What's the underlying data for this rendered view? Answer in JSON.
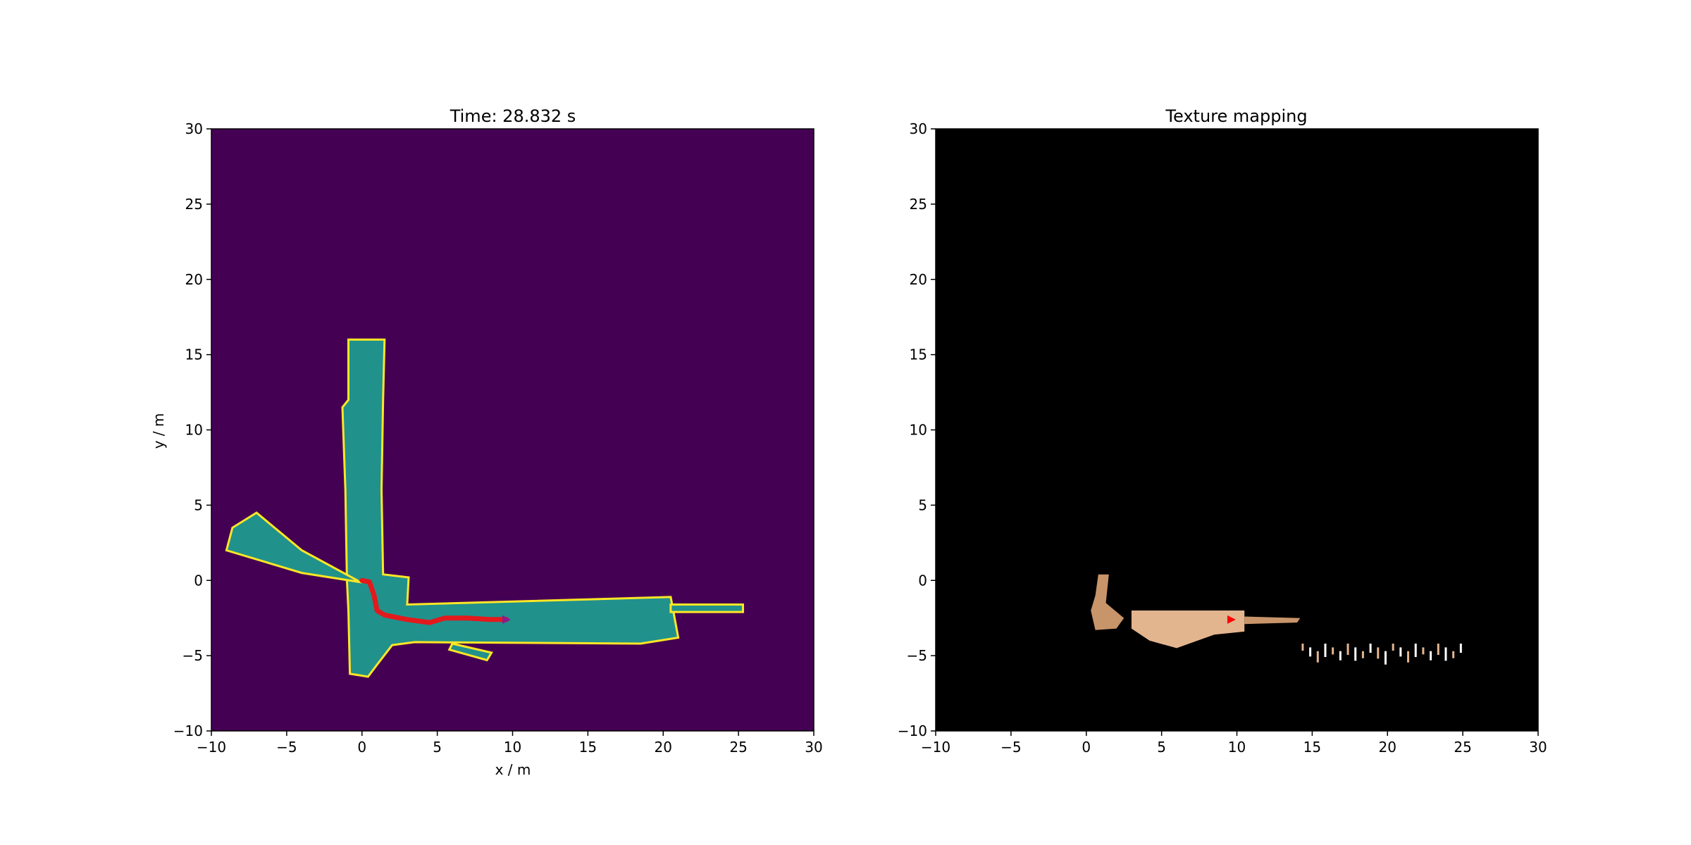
{
  "chart_data": [
    {
      "type": "heatmap",
      "title": "Time: 28.832 s",
      "xlabel": "x / m",
      "ylabel": "y / m",
      "xlim": [
        -10,
        30
      ],
      "ylim": [
        -10,
        30
      ],
      "xticks": [
        "−10",
        "−5",
        "0",
        "5",
        "10",
        "15",
        "20",
        "25",
        "30"
      ],
      "yticks": [
        "−10",
        "−5",
        "0",
        "5",
        "10",
        "15",
        "20",
        "25",
        "30"
      ],
      "colors": {
        "unknown": "#440154",
        "free": "#21918c",
        "occupied": "#fde725",
        "trajectory": "#e3191c"
      },
      "free_regions": [
        [
          [
            -0.9,
            16.0
          ],
          [
            1.5,
            16.0
          ],
          [
            1.4,
            12.0
          ],
          [
            1.3,
            6.0
          ],
          [
            1.4,
            0.4
          ],
          [
            3.1,
            0.2
          ],
          [
            3.0,
            -1.6
          ],
          [
            20.5,
            -1.1
          ],
          [
            21.0,
            -3.8
          ],
          [
            18.5,
            -4.2
          ],
          [
            3.5,
            -4.1
          ],
          [
            2.0,
            -4.3
          ],
          [
            1.0,
            -5.6
          ],
          [
            0.4,
            -6.4
          ],
          [
            -0.8,
            -6.2
          ],
          [
            -0.9,
            -2.0
          ],
          [
            -1.0,
            0.0
          ],
          [
            -1.1,
            6.0
          ],
          [
            -1.3,
            11.5
          ],
          [
            -0.9,
            12.0
          ]
        ],
        [
          [
            -0.3,
            0.0
          ],
          [
            -4.0,
            2.0
          ],
          [
            -7.0,
            4.5
          ],
          [
            -8.6,
            3.5
          ],
          [
            -9.0,
            2.0
          ],
          [
            -4.0,
            0.5
          ],
          [
            -0.2,
            -0.1
          ]
        ],
        [
          [
            6.0,
            -4.2
          ],
          [
            8.6,
            -4.8
          ],
          [
            8.3,
            -5.3
          ],
          [
            5.8,
            -4.6
          ]
        ],
        [
          [
            20.5,
            -1.6
          ],
          [
            25.3,
            -1.6
          ],
          [
            25.3,
            -2.1
          ],
          [
            20.5,
            -2.1
          ]
        ]
      ],
      "trajectory": {
        "x": [
          0.0,
          0.5,
          0.8,
          1.0,
          1.5,
          3.0,
          4.5,
          5.5,
          7.0,
          8.5,
          9.6
        ],
        "y": [
          0.0,
          -0.1,
          -1.0,
          -2.0,
          -2.3,
          -2.6,
          -2.8,
          -2.5,
          -2.5,
          -2.6,
          -2.6
        ]
      }
    },
    {
      "type": "heatmap",
      "title": "Texture mapping",
      "xlim": [
        -10,
        30
      ],
      "ylim": [
        -10,
        30
      ],
      "xticks": [
        "−10",
        "−5",
        "0",
        "5",
        "10",
        "15",
        "20",
        "25",
        "30"
      ],
      "yticks": [
        "−10",
        "−5",
        "0",
        "5",
        "10",
        "15",
        "20",
        "25",
        "30"
      ],
      "colors": {
        "background": "#000000",
        "texture": "#c8946a",
        "texture_light": "#e3b58f",
        "white": "#ffffff",
        "marker": "#ff0000"
      },
      "texture_regions": [
        [
          [
            0.8,
            0.4
          ],
          [
            1.5,
            0.4
          ],
          [
            1.3,
            -1.5
          ],
          [
            2.5,
            -2.5
          ],
          [
            2.0,
            -3.2
          ],
          [
            0.6,
            -3.3
          ],
          [
            0.3,
            -2.0
          ],
          [
            0.6,
            -1.0
          ]
        ],
        [
          [
            3.0,
            -2.0
          ],
          [
            10.5,
            -2.0
          ],
          [
            10.5,
            -3.4
          ],
          [
            8.5,
            -3.6
          ],
          [
            6.0,
            -4.5
          ],
          [
            4.2,
            -4.0
          ],
          [
            3.0,
            -3.2
          ]
        ],
        [
          [
            10.5,
            -2.4
          ],
          [
            14.2,
            -2.5
          ],
          [
            14.0,
            -2.8
          ],
          [
            10.5,
            -2.9
          ]
        ]
      ],
      "robot": {
        "x": 9.6,
        "y": -2.6
      }
    }
  ]
}
